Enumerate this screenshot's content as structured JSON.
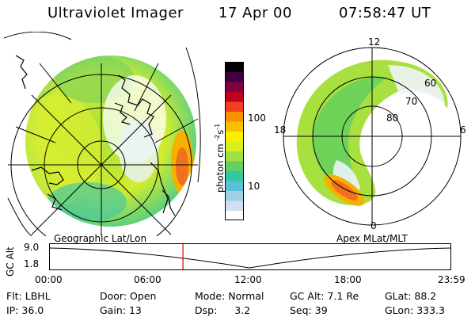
{
  "header": {
    "instrument": "Ultraviolet Imager",
    "date": "17 Apr 00",
    "time": "07:58:47 UT"
  },
  "colorbar": {
    "label": "photon cm",
    "label_exp1": "-2",
    "label_s": "s",
    "label_exp2": "-1",
    "ticks": [
      "100",
      "10"
    ],
    "colors": [
      "#ffffff",
      "#cfe0f0",
      "#9ed0e8",
      "#58c0d8",
      "#30c8a0",
      "#60d060",
      "#a0e040",
      "#d8f020",
      "#f8f000",
      "#f8c000",
      "#f89000",
      "#f04020",
      "#c00020",
      "#800040",
      "#400040",
      "#000000"
    ]
  },
  "polar_plot": {
    "mlat_labels": [
      "60",
      "70",
      "80"
    ],
    "mlt_labels": {
      "top": "12",
      "left": "18",
      "right": "6",
      "bottom": "0"
    }
  },
  "map_labels": {
    "left": "Geographic Lat/Lon",
    "right": "Apex MLat/MLT"
  },
  "timeline": {
    "ylabel": "GC Alt",
    "yticks": [
      "9.0",
      "1.8"
    ],
    "xticks": [
      "00:00",
      "06:00",
      "12:00",
      "18:00",
      "23:59"
    ],
    "marker_time": "07:58"
  },
  "info": {
    "filter": {
      "label": "Flt:",
      "value": "LBHL"
    },
    "door": {
      "label": "Door:",
      "value": "Open"
    },
    "mode": {
      "label": "Mode:",
      "value": "Normal"
    },
    "gc_alt": {
      "label": "GC Alt:",
      "value": "7.1 Re"
    },
    "glat": {
      "label": "GLat:",
      "value": "88.2"
    },
    "ip": {
      "label": "IP:",
      "value": "36.0"
    },
    "gain": {
      "label": "Gain:",
      "value": "13"
    },
    "dsp": {
      "label": "Dsp:",
      "value": "3.2"
    },
    "seq": {
      "label": "Seq:",
      "value": "39"
    },
    "glon": {
      "label": "GLon:",
      "value": "333.3"
    }
  }
}
